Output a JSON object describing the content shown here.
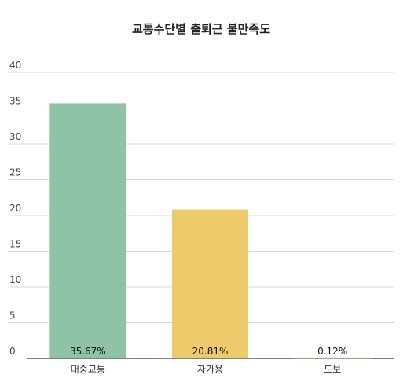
{
  "chart_data": {
    "type": "bar",
    "title": "교통수단별 출퇴근 불만족도",
    "categories": [
      "대중교통",
      "자가용",
      "도보"
    ],
    "values": [
      35.67,
      20.81,
      0.12
    ],
    "data_labels": [
      "35.67%",
      "20.81%",
      "0.12%"
    ],
    "colors": [
      "#8fc3a8",
      "#edca6a",
      "#b6764f"
    ],
    "ylim": [
      0,
      40
    ],
    "yticks": [
      0,
      5,
      10,
      15,
      20,
      25,
      30,
      35,
      40
    ],
    "grid": true,
    "legend": "none"
  }
}
